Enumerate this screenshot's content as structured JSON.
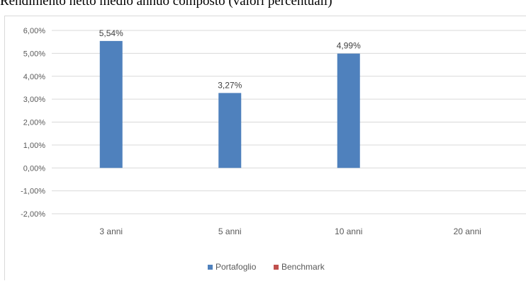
{
  "chart_data": {
    "type": "bar",
    "title": "Rendimento netto medio annuo composto (valori percentuali)",
    "categories": [
      "3 anni",
      "5 anni",
      "10 anni",
      "20 anni"
    ],
    "series": [
      {
        "name": "Portafoglio",
        "color": "#4f81bd",
        "values": [
          5.54,
          3.27,
          4.99,
          null
        ]
      },
      {
        "name": "Benchmark",
        "color": "#c0504d",
        "values": [
          null,
          null,
          null,
          null
        ]
      }
    ],
    "data_labels": [
      "5,54%",
      "3,27%",
      "4,99%",
      ""
    ],
    "y_ticks": [
      6,
      5,
      4,
      3,
      2,
      1,
      0,
      -1,
      -2
    ],
    "y_tick_labels": [
      "6,00%",
      "5,00%",
      "4,00%",
      "3,00%",
      "2,00%",
      "1,00%",
      "0,00%",
      "-1,00%",
      "-2,00%"
    ],
    "ylim": [
      -2,
      6
    ],
    "grid": true,
    "legend_position": "bottom",
    "xlabel": "",
    "ylabel": ""
  }
}
